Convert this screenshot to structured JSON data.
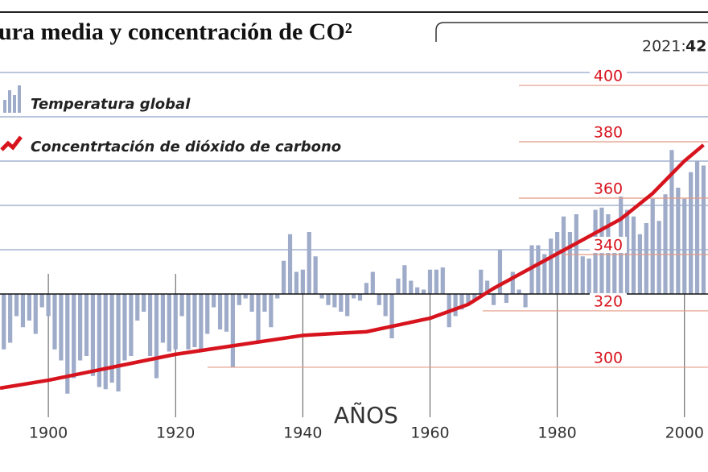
{
  "title": "ura media y concentración de CO²",
  "info": {
    "label": "2021:",
    "value": "42"
  },
  "chart_data": {
    "type": "combo",
    "x_label": "AÑOS",
    "xlim": [
      1892.4,
      2003.7
    ],
    "xticks": [
      1900,
      1920,
      1940,
      1960,
      1980,
      2000
    ],
    "ylim": [
      -0.5,
      1.0
    ],
    "yticks": [
      0,
      0.2,
      0.4,
      0.6,
      0.8,
      1.0
    ],
    "y2lim": [
      284.4,
      402.3
    ],
    "y2ticks": [
      300,
      320,
      340,
      360,
      380,
      400
    ],
    "grid": true,
    "series": [
      {
        "name": "Temperatura global",
        "type": "bar",
        "color": "#9eabc9",
        "x": [
          1893,
          1894,
          1895,
          1896,
          1897,
          1898,
          1899,
          1900,
          1901,
          1902,
          1903,
          1904,
          1905,
          1906,
          1907,
          1908,
          1909,
          1910,
          1911,
          1912,
          1913,
          1914,
          1915,
          1916,
          1917,
          1918,
          1919,
          1920,
          1921,
          1922,
          1923,
          1924,
          1925,
          1926,
          1927,
          1928,
          1929,
          1930,
          1931,
          1932,
          1933,
          1934,
          1935,
          1936,
          1937,
          1938,
          1939,
          1940,
          1941,
          1942,
          1943,
          1944,
          1945,
          1946,
          1947,
          1948,
          1949,
          1950,
          1951,
          1952,
          1953,
          1954,
          1955,
          1956,
          1957,
          1958,
          1959,
          1960,
          1961,
          1962,
          1963,
          1964,
          1965,
          1966,
          1967,
          1968,
          1969,
          1970,
          1971,
          1972,
          1973,
          1974,
          1975,
          1976,
          1977,
          1978,
          1979,
          1980,
          1981,
          1982,
          1983,
          1984,
          1985,
          1986,
          1987,
          1988,
          1989,
          1990,
          1991,
          1992,
          1993,
          1994,
          1995,
          1996,
          1997,
          1998,
          1999,
          2000,
          2001,
          2002,
          2003
        ],
        "values": [
          -0.25,
          -0.22,
          -0.1,
          -0.15,
          -0.12,
          -0.18,
          -0.06,
          -0.1,
          -0.25,
          -0.3,
          -0.45,
          -0.38,
          -0.3,
          -0.28,
          -0.37,
          -0.42,
          -0.43,
          -0.4,
          -0.44,
          -0.3,
          -0.28,
          -0.12,
          -0.08,
          -0.28,
          -0.38,
          -0.22,
          -0.26,
          -0.25,
          -0.1,
          -0.25,
          -0.24,
          -0.25,
          -0.18,
          -0.06,
          -0.16,
          -0.17,
          -0.33,
          -0.05,
          -0.02,
          -0.08,
          -0.22,
          -0.08,
          -0.15,
          -0.02,
          0.15,
          0.27,
          0.1,
          0.11,
          0.28,
          0.17,
          -0.02,
          -0.05,
          -0.06,
          -0.08,
          -0.1,
          -0.02,
          -0.03,
          0.05,
          0.1,
          -0.05,
          -0.1,
          -0.2,
          0.07,
          0.13,
          0.06,
          0.03,
          0.02,
          0.11,
          0.11,
          0.12,
          -0.15,
          -0.1,
          -0.07,
          -0.05,
          -0.03,
          0.11,
          0.06,
          -0.05,
          0.2,
          -0.04,
          0.1,
          0.02,
          -0.06,
          0.22,
          0.22,
          0.18,
          0.25,
          0.28,
          0.35,
          0.28,
          0.36,
          0.17,
          0.16,
          0.38,
          0.39,
          0.36,
          0.22,
          0.47,
          0.38,
          0.35,
          0.27,
          0.32,
          0.43,
          0.33,
          0.45,
          0.65,
          0.48,
          0.43,
          0.55,
          0.6,
          0.58
        ]
      },
      {
        "name": "Concentrtación de dióxido de carbono",
        "type": "line",
        "axis": "y2",
        "color": "#d7141e",
        "x": [
          1892.4,
          1900,
          1920,
          1940,
          1945,
          1950,
          1960,
          1966,
          1970,
          1980,
          1990,
          1995,
          2000,
          2003
        ],
        "values": [
          290.3,
          293.1,
          302.3,
          309,
          309.7,
          310.3,
          315.1,
          320,
          325.7,
          338,
          350.3,
          359.4,
          370.9,
          376.6
        ]
      }
    ]
  }
}
